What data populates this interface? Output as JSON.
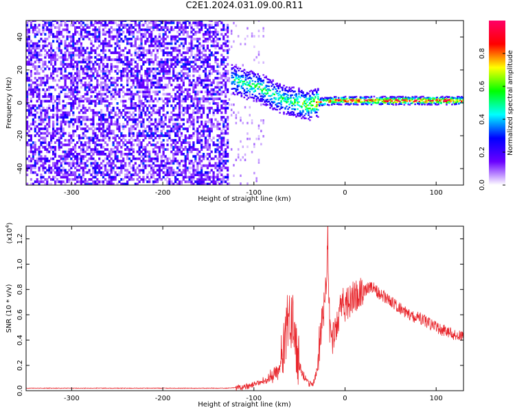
{
  "title": "C2E1.2024.031.09.00.R11",
  "chart_data": [
    {
      "type": "heatmap",
      "title": "",
      "xlabel": "Height of straight line (km)",
      "ylabel": "Frequency (Hz)",
      "xlim": [
        -350,
        130
      ],
      "ylim": [
        -50,
        50
      ],
      "xticks": [
        -300,
        -200,
        -100,
        0,
        100
      ],
      "yticks": [
        -40,
        -20,
        0,
        20,
        40
      ],
      "grid": false,
      "noise_region": {
        "x": [
          -350,
          -128
        ],
        "y": [
          -50,
          50
        ],
        "level": 0.2
      },
      "sparse_region": {
        "x": [
          -128,
          -90
        ],
        "y": [
          -50,
          50
        ],
        "level": 0.1
      },
      "ridge": [
        {
          "x": -125,
          "y": 14,
          "amp": 0.4
        },
        {
          "x": -110,
          "y": 11,
          "amp": 0.45
        },
        {
          "x": -95,
          "y": 9,
          "amp": 0.5
        },
        {
          "x": -85,
          "y": 6,
          "amp": 0.45
        },
        {
          "x": -75,
          "y": 3,
          "amp": 0.45
        },
        {
          "x": -65,
          "y": 1,
          "amp": 0.45
        },
        {
          "x": -55,
          "y": 0,
          "amp": 0.55
        },
        {
          "x": -40,
          "y": -2,
          "amp": 0.6
        },
        {
          "x": -30,
          "y": 0,
          "amp": 0.75
        },
        {
          "x": -10,
          "y": 1,
          "amp": 0.85
        },
        {
          "x": 30,
          "y": 1,
          "amp": 0.95
        },
        {
          "x": 90,
          "y": 1,
          "amp": 0.95
        },
        {
          "x": 130,
          "y": 1,
          "amp": 0.9
        }
      ],
      "colorbar": {
        "label": "Normalized spectral amplitude",
        "range": [
          0.0,
          1.0
        ],
        "ticks": [
          0.0,
          0.2,
          0.4,
          0.6,
          0.8
        ],
        "colors": [
          "#ffffff",
          "#6a00ff",
          "#0000ff",
          "#00ffff",
          "#00ff00",
          "#ffff00",
          "#ff0000",
          "#ff0066"
        ]
      }
    },
    {
      "type": "line",
      "title": "",
      "xlabel": "Height of straight line (km)",
      "ylabel": "SNR (10 * v/v)",
      "scale_label": "(x10",
      "scale_exp": "4",
      "xlim": [
        -350,
        130
      ],
      "ylim": [
        0,
        1.3
      ],
      "xticks": [
        -300,
        -200,
        -100,
        0,
        100
      ],
      "yticks": [
        0.0,
        0.2,
        0.4,
        0.6,
        0.8,
        1.0,
        1.2
      ],
      "color": "#e8242a",
      "grid": false,
      "x": [
        -350,
        -300,
        -200,
        -130,
        -110,
        -100,
        -90,
        -80,
        -72,
        -66,
        -63,
        -60,
        -57,
        -54,
        -50,
        -45,
        -40,
        -36,
        -33,
        -30,
        -27,
        -24,
        -21,
        -19,
        -18,
        -17,
        -15,
        -12,
        -8,
        -5,
        -2,
        0,
        5,
        10,
        15,
        20,
        25,
        30,
        35,
        40,
        50,
        60,
        70,
        80,
        90,
        100,
        110,
        120,
        130
      ],
      "y": [
        0.02,
        0.02,
        0.02,
        0.02,
        0.03,
        0.05,
        0.08,
        0.12,
        0.16,
        0.4,
        0.6,
        0.55,
        0.65,
        0.4,
        0.2,
        0.12,
        0.06,
        0.05,
        0.1,
        0.2,
        0.5,
        0.65,
        0.8,
        1.3,
        0.9,
        0.55,
        0.35,
        0.5,
        0.55,
        0.65,
        0.72,
        0.68,
        0.72,
        0.76,
        0.78,
        0.8,
        0.81,
        0.82,
        0.79,
        0.76,
        0.72,
        0.66,
        0.6,
        0.58,
        0.55,
        0.5,
        0.48,
        0.45,
        0.42
      ],
      "noise": [
        {
          "x": [
            -120,
            -90
          ],
          "amp": 0.08
        },
        {
          "x": [
            -90,
            -70
          ],
          "amp": 0.12
        },
        {
          "x": [
            -70,
            -50
          ],
          "amp": 0.45
        },
        {
          "x": [
            -50,
            -30
          ],
          "amp": 0.08
        },
        {
          "x": [
            -30,
            -15
          ],
          "amp": 0.35
        },
        {
          "x": [
            -15,
            20
          ],
          "amp": 0.28
        },
        {
          "x": [
            20,
            130
          ],
          "amp": 0.1
        }
      ]
    }
  ]
}
